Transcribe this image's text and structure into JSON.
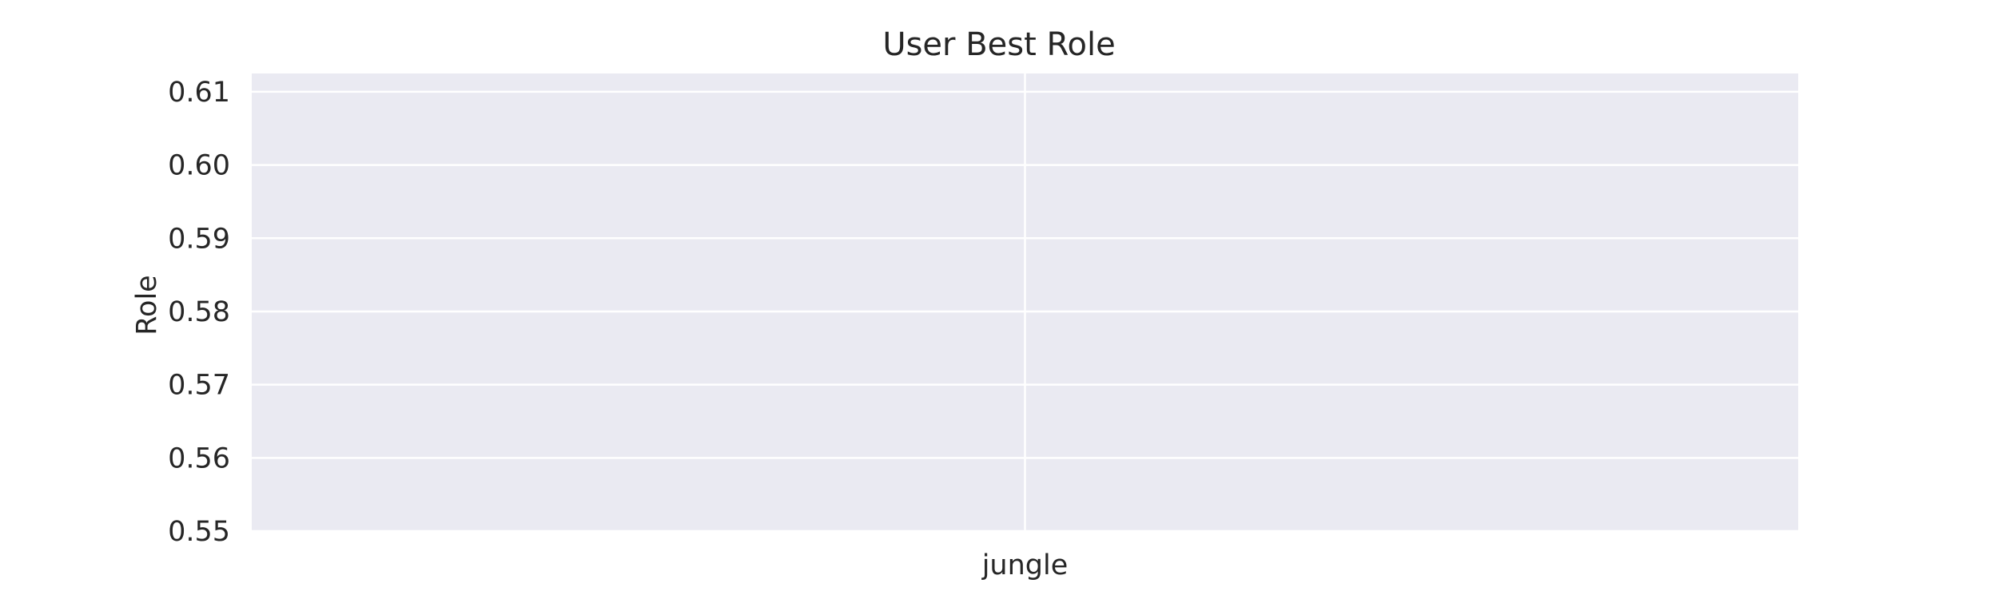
{
  "chart_data": {
    "type": "bar",
    "title": "User Best Role",
    "xlabel": "",
    "ylabel": "Role",
    "categories": [
      "jungle"
    ],
    "values": [
      null
    ],
    "ylim": [
      0.55,
      0.6125
    ],
    "yticks": [
      "0.55",
      "0.56",
      "0.57",
      "0.58",
      "0.59",
      "0.60",
      "0.61"
    ],
    "grid": true,
    "legend": "none",
    "colors": {
      "plot_background": "#eaeaf2",
      "grid": "#ffffff",
      "text": "#262626"
    }
  }
}
